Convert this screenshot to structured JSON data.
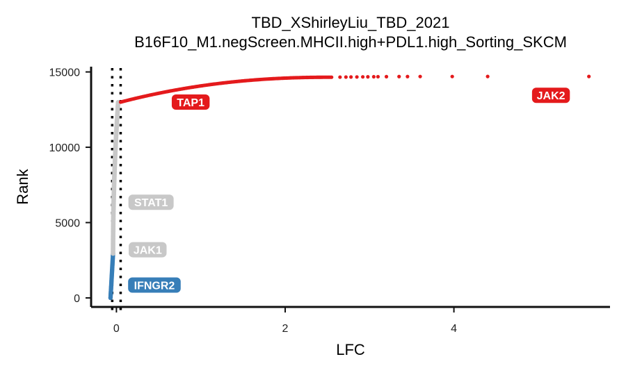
{
  "chart_data": {
    "type": "scatter",
    "title_line1": "TBD_XShirleyLiu_TBD_2021",
    "title_line2": "B16F10_M1.negScreen.MHCII.high+PDL1.high_Sorting_SKCM",
    "xlabel": "LFC",
    "ylabel": "Rank",
    "xlim": [
      -0.3,
      5.85
    ],
    "ylim": [
      -600,
      15350
    ],
    "x_ticks": [
      0,
      2,
      4
    ],
    "y_ticks": [
      0,
      5000,
      10000,
      15000
    ],
    "vlines": [
      -0.05,
      0.05
    ],
    "colors": {
      "positive": "#e41a1c",
      "negative": "#377eb8",
      "neutral": "#c8c8c8"
    },
    "grid": false,
    "curves": {
      "positive": {
        "rank_start": 13000,
        "rank_end": 14650,
        "lfc_start": 0.05,
        "lfc_end": 2.55,
        "outliers": [
          {
            "lfc": 2.65,
            "rank": 14655
          },
          {
            "lfc": 2.72,
            "rank": 14660
          },
          {
            "lfc": 2.78,
            "rank": 14664
          },
          {
            "lfc": 2.85,
            "rank": 14668
          },
          {
            "lfc": 2.92,
            "rank": 14672
          },
          {
            "lfc": 2.98,
            "rank": 14676
          },
          {
            "lfc": 3.05,
            "rank": 14680
          },
          {
            "lfc": 3.1,
            "rank": 14684
          },
          {
            "lfc": 3.2,
            "rank": 14688
          },
          {
            "lfc": 3.35,
            "rank": 14692
          },
          {
            "lfc": 3.45,
            "rank": 14694
          },
          {
            "lfc": 3.6,
            "rank": 14696
          },
          {
            "lfc": 3.98,
            "rank": 14697
          },
          {
            "lfc": 4.4,
            "rank": 14698
          },
          {
            "lfc": 5.6,
            "rank": 14700
          }
        ]
      },
      "neutral": {
        "rank_start": 2950,
        "rank_end": 12980,
        "lfc_start": -0.04,
        "lfc_end": 0.02
      },
      "negative": {
        "rank_start": 0,
        "rank_end": 2950,
        "lfc_start": -0.07,
        "lfc_end": -0.04
      }
    },
    "labels": [
      {
        "text": "TAP1",
        "lfc": 0.88,
        "rank": 13000,
        "group": "positive"
      },
      {
        "text": "JAK2",
        "lfc": 5.15,
        "rank": 13450,
        "group": "positive"
      },
      {
        "text": "STAT1",
        "lfc": 0.41,
        "rank": 6350,
        "group": "neutral"
      },
      {
        "text": "JAK1",
        "lfc": 0.37,
        "rank": 3200,
        "group": "neutral"
      },
      {
        "text": "IFNGR2",
        "lfc": 0.45,
        "rank": 850,
        "group": "negative"
      }
    ]
  }
}
